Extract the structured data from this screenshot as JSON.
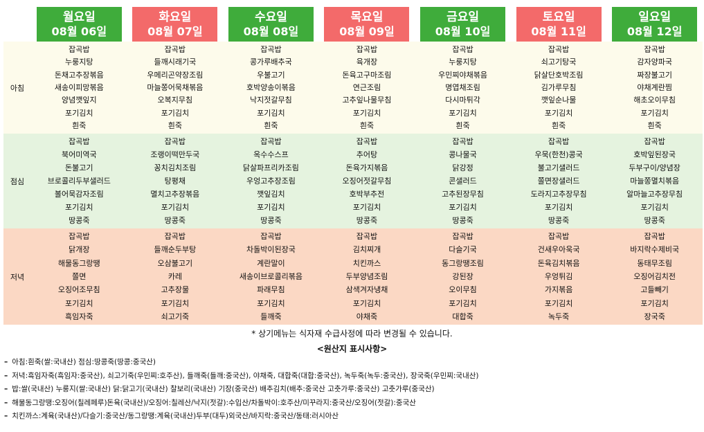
{
  "days": [
    {
      "name": "월요일",
      "date": "08월 06일",
      "color": "#3fac3b",
      "breakfast": [
        "잡곡밥",
        "누룽지탕",
        "돈채고추장볶음",
        "새송이피망볶음",
        "양념깻잎지",
        "포기김치",
        "흰죽"
      ],
      "lunch": [
        "잡곡밥",
        "북어미역국",
        "돈불고기",
        "브로콜리두부샐러드",
        "볼어묵감자조림",
        "포기김치",
        "땅콩죽"
      ],
      "dinner": [
        "잡곡밥",
        "닭개장",
        "해물동그랑땡",
        "쫄면",
        "오징어조무침",
        "포기김치",
        "흑임자죽"
      ]
    },
    {
      "name": "화요일",
      "date": "08월 07일",
      "color": "#f36a6a",
      "breakfast": [
        "잡곡밥",
        "들깨시래기국",
        "우메리곤약장조림",
        "마늘쫑어묵채볶음",
        "오복지무침",
        "포기김치",
        "흰죽"
      ],
      "lunch": [
        "잡곡밥",
        "조랭이떡만두국",
        "꽁치김치조림",
        "탕평채",
        "멸치고추장볶음",
        "포기김치",
        "땅콩죽"
      ],
      "dinner": [
        "잡곡밥",
        "들깨순두부탕",
        "오삼불고기",
        "카레",
        "고추장물",
        "포기김치",
        "쇠고기죽"
      ]
    },
    {
      "name": "수요일",
      "date": "08월 08일",
      "color": "#3fac3b",
      "breakfast": [
        "잡곡밥",
        "콩가루배추국",
        "우불고기",
        "호박양송이볶음",
        "낙지젓갈무침",
        "포기김치",
        "흰죽"
      ],
      "lunch": [
        "잡곡밥",
        "옥수수스프",
        "닭살파프리카조림",
        "우엉고추장조림",
        "깻잎김치",
        "포기김치",
        "땅콩죽"
      ],
      "dinner": [
        "잡곡밥",
        "차돌박이된장국",
        "계란말이",
        "새송이브로콜리볶음",
        "파래무침",
        "포기김치",
        "들깨죽"
      ]
    },
    {
      "name": "목요일",
      "date": "08월 09일",
      "color": "#f36a6a",
      "breakfast": [
        "잡곡밥",
        "육개장",
        "돈육고구마조림",
        "연근조림",
        "고추잎나물무침",
        "포기김치",
        "흰죽"
      ],
      "lunch": [
        "잡곡밥",
        "추어탕",
        "돈육가지볶음",
        "오징어젓갈무침",
        "호박부추전",
        "포기김치",
        "땅콩죽"
      ],
      "dinner": [
        "잡곡밥",
        "김치찌개",
        "치킨까스",
        "두부양념조림",
        "삼색겨자냉채",
        "포기김치",
        "야채죽"
      ]
    },
    {
      "name": "금요일",
      "date": "08월 10일",
      "color": "#3fac3b",
      "breakfast": [
        "잡곡밥",
        "누룽지탕",
        "우민찌야채볶음",
        "명엽채조림",
        "다시마튀각",
        "포기김치",
        "흰죽"
      ],
      "lunch": [
        "잡곡밥",
        "콩나물국",
        "닭강정",
        "콘샐러드",
        "고추된장무침",
        "포기김치",
        "땅콩죽"
      ],
      "dinner": [
        "잡곡밥",
        "다슬기국",
        "동그랑땡조림",
        "강된장",
        "오이무침",
        "포기김치",
        "대합죽"
      ]
    },
    {
      "name": "토요일",
      "date": "08월 11일",
      "color": "#f36a6a",
      "breakfast": [
        "잡곡밥",
        "쇠고기탕국",
        "닭살단호박조림",
        "김가루무침",
        "깻잎순나물",
        "포기김치",
        "흰죽"
      ],
      "lunch": [
        "잡곡밥",
        "우묵(한천)콩국",
        "불고기샐러드",
        "쫄면장샐러드",
        "도라지고추장무침",
        "포기김치",
        "땅콩죽"
      ],
      "dinner": [
        "잡곡밥",
        "건새우아욱국",
        "돈육김치볶음",
        "우엉튀김",
        "가지볶음",
        "포기김치",
        "녹두죽"
      ]
    },
    {
      "name": "일요일",
      "date": "08월 12일",
      "color": "#3fac3b",
      "breakfast": [
        "잡곡밥",
        "감자양파국",
        "짜장불고기",
        "야채계란찜",
        "해초오이무침",
        "포기김치",
        "흰죽"
      ],
      "lunch": [
        "잡곡밥",
        "호박잎된장국",
        "두부구이/양념장",
        "마늘쫑멸치볶음",
        "알마늘고추장무침",
        "포기김치",
        "땅콩죽"
      ],
      "dinner": [
        "잡곡밥",
        "바지락수제비국",
        "동태무조림",
        "오징어김치전",
        "고들빼기",
        "포기김치",
        "장국죽"
      ]
    }
  ],
  "meal_labels": {
    "breakfast": "아침",
    "lunch": "점심",
    "dinner": "저녁"
  },
  "note": "* 상기메뉴는 식자재 수급사정에 따라 변경될 수 있습니다.",
  "origin_title": "<원산지 표시사항>",
  "origin_dash": "–",
  "origin_lines": [
    "아침:흰죽(쌀:국내산) 점심:땅콩죽(땅콩:중국산)",
    "저녁:흑임자죽(흑임자:중국산), 쇠고기죽(우민찌:호주산), 들깨죽(들깨:중국산), 야채죽, 대합죽(대합:중국산), 녹두죽(녹두:중국산), 장국죽(우민찌:국내산)",
    "밥:쌀(국내산) 누룽지(쌀:국내산) 닭:닭고기(국내산) 찰보리(국내산) 기장(중국산) 배추김치(배추:중국산 고춧가루:중국산) 고춧가루(중국산)",
    "해물동그랑땡:오징어(칠레페루)돈육(국내산)/오징어:칠레산/낙지(젓갈):수입산/차돌박이:호주산/미꾸라지:중국산/오징어(젓갈):중국산",
    "치킨까스:계육(국내산)/다슬기:중국산/동그랑땡:계육(국내산)두부(대두)외국산/바지락:중국산/동태:러시아산"
  ]
}
